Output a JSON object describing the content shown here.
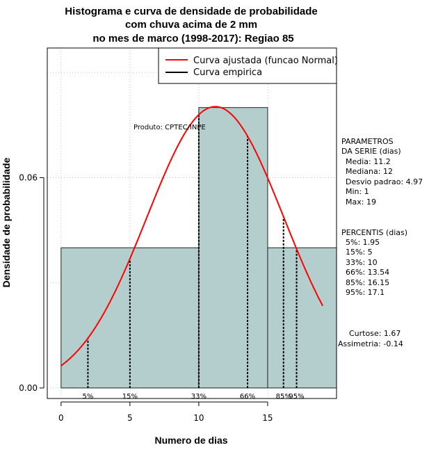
{
  "chart_data": {
    "type": "histogram",
    "title_lines": [
      "Histograma e curva de densidade de probabilidade",
      "com chuva acima de 2 mm",
      "no mes de marco (1998-2017): Regiao 85"
    ],
    "xlabel": "Numero de dias",
    "ylabel": "Densidade de probabilidade",
    "xlim": [
      -1,
      20
    ],
    "ylim": [
      -0.003,
      0.097
    ],
    "x_ticks": [
      0,
      5,
      10,
      15
    ],
    "y_ticks": [
      0.0,
      0.06
    ],
    "y_tick_labels": [
      "0.00",
      "0.06"
    ],
    "bins": [
      {
        "start": 0,
        "end": 10,
        "density": 0.04
      },
      {
        "start": 10,
        "end": 15,
        "density": 0.08
      },
      {
        "start": 15,
        "end": 20,
        "density": 0.04
      }
    ],
    "fitted_curve": {
      "name": "Curva ajustada (funcao Normal)",
      "mean": 11.2,
      "sd": 4.97,
      "x_range": [
        0,
        19
      ],
      "color": "#ff0000"
    },
    "empirical_curve_label": "Curva empirica",
    "empirical_color": "#000000",
    "bar_fill": "#b4cece",
    "grid_color": "#c0c0c0",
    "product_label": "Produto: CPTEC/INPE",
    "percentile_marks": [
      {
        "label": "5%",
        "x": 1.95
      },
      {
        "label": "15%",
        "x": 5
      },
      {
        "label": "33%",
        "x": 10
      },
      {
        "label": "66%",
        "x": 13.54
      },
      {
        "label": "85%",
        "x": 16.15
      },
      {
        "label": "95%",
        "x": 17.1
      }
    ],
    "side_panel": {
      "params_title": [
        "PARAMETROS",
        "DA SERIE (dias)"
      ],
      "params": [
        "Media: 11.2",
        "Mediana: 12",
        "Desvio padrao: 4.97",
        "Min: 1",
        "Max: 19"
      ],
      "percentis_title": "PERCENTIS (dias)",
      "percentis": [
        "5%: 1.95",
        "15%: 5",
        "33%: 10",
        "66%: 13.54",
        "85%: 16.15",
        "95%: 17.1"
      ],
      "curtose": "Curtose: 1.67",
      "assimetria": "Assimetria: -0.14"
    }
  }
}
